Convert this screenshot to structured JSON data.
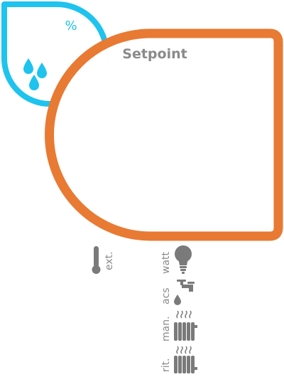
{
  "colors": {
    "humidity": "#1ec3ee",
    "setpoint_panel": "#e87a33",
    "icons": "#7a7a7a",
    "label_text": "#8a8a8a",
    "background": "#ffffff"
  },
  "humidity_widget": {
    "unit_label": "%",
    "icon": "water-drops-icon"
  },
  "setpoint_panel": {
    "title": "Setpoint"
  },
  "indicators": [
    {
      "label": "ext.",
      "icon": "thermometer-icon"
    },
    {
      "label": "watt",
      "icon": "light-bulb-icon"
    },
    {
      "label": "acs",
      "icon": "water-tap-icon"
    },
    {
      "label": "man.",
      "icon": "radiator-flow-icon"
    },
    {
      "label": "rit.",
      "icon": "radiator-return-icon"
    }
  ]
}
